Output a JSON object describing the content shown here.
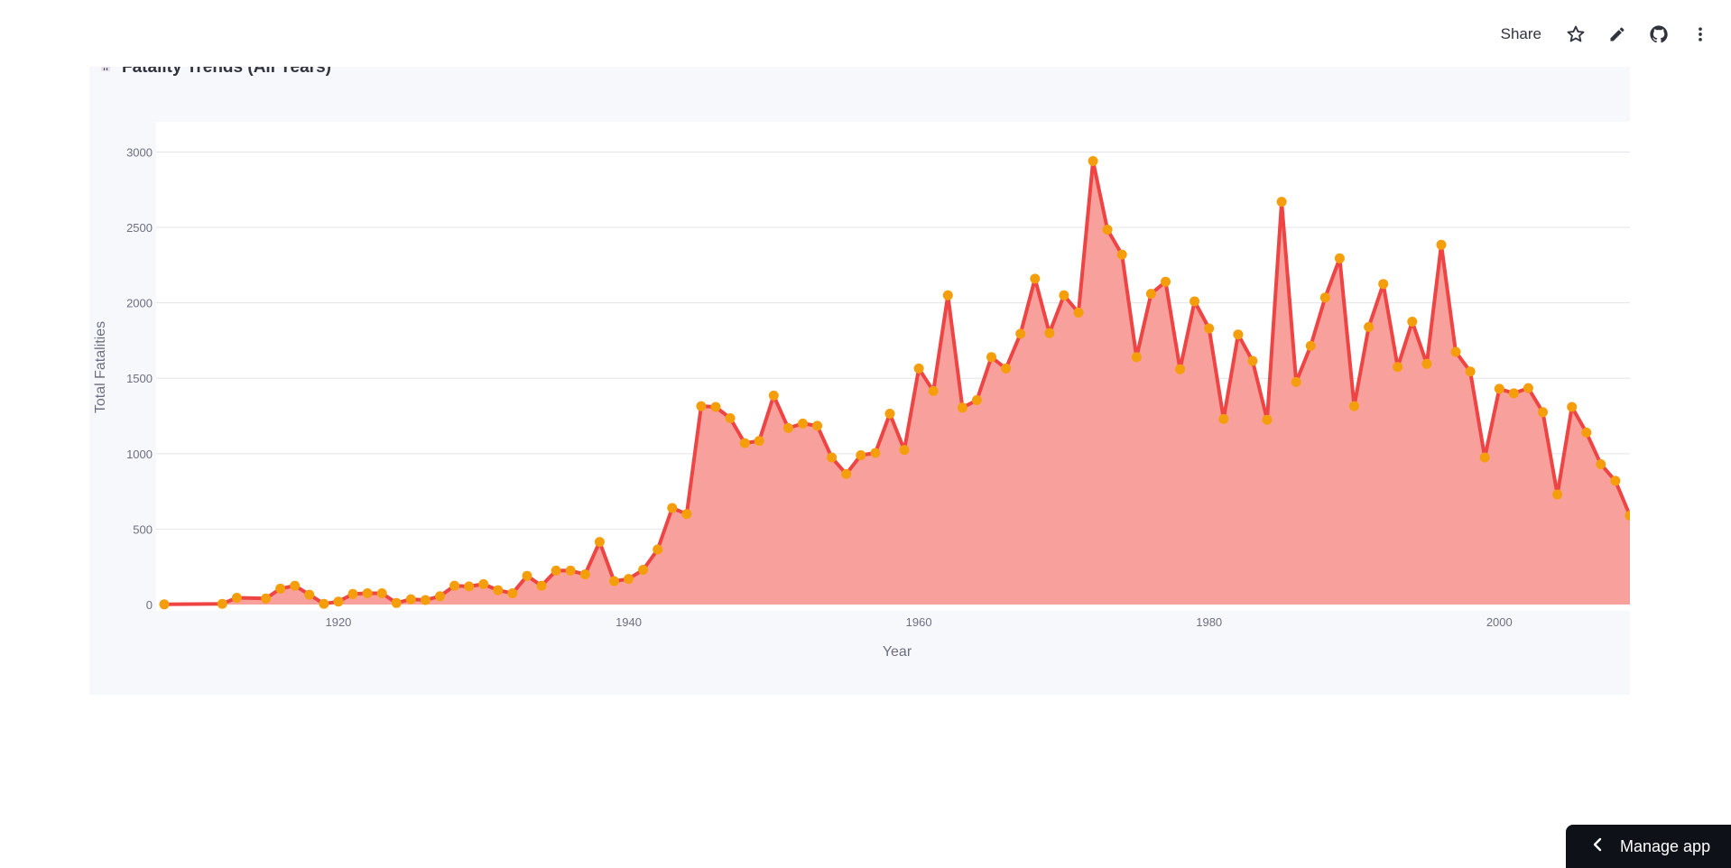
{
  "header": {
    "share_label": "Share",
    "icons": [
      "star-icon",
      "pencil-icon",
      "github-icon",
      "more-vertical-icon"
    ]
  },
  "manage_app": {
    "label": "Manage app"
  },
  "colors": {
    "line": "#ef4444",
    "fill": "#f8a09b",
    "marker": "#f59e0b",
    "card_bg": "#f7f8fc",
    "grid": "#e3e4ea"
  },
  "chart_data": {
    "type": "area",
    "title": "Fatality Trends (All Years)",
    "xlabel": "Year",
    "ylabel": "Total Fatalities",
    "xlim": [
      1908,
      2009
    ],
    "ylim": [
      0,
      3200
    ],
    "x_ticks": [
      1920,
      1940,
      1960,
      1980,
      2000
    ],
    "x_tick_labels": [
      "1920",
      "1940",
      "1960",
      "1980",
      "2000"
    ],
    "y_ticks": [
      0,
      500,
      1000,
      1500,
      2000,
      2500,
      3000
    ],
    "y_tick_labels": [
      "0",
      "500",
      "1000",
      "1500",
      "2000",
      "2500",
      "3000"
    ],
    "grid": true,
    "series": [
      {
        "name": "Total Fatalities",
        "points": [
          [
            1908,
            1
          ],
          [
            1912,
            5
          ],
          [
            1913,
            45
          ],
          [
            1915,
            40
          ],
          [
            1916,
            105
          ],
          [
            1917,
            125
          ],
          [
            1918,
            65
          ],
          [
            1919,
            5
          ],
          [
            1920,
            20
          ],
          [
            1921,
            70
          ],
          [
            1922,
            75
          ],
          [
            1923,
            75
          ],
          [
            1924,
            10
          ],
          [
            1925,
            35
          ],
          [
            1926,
            30
          ],
          [
            1927,
            55
          ],
          [
            1928,
            125
          ],
          [
            1929,
            120
          ],
          [
            1930,
            135
          ],
          [
            1931,
            95
          ],
          [
            1932,
            75
          ],
          [
            1933,
            190
          ],
          [
            1934,
            125
          ],
          [
            1935,
            225
          ],
          [
            1936,
            225
          ],
          [
            1937,
            200
          ],
          [
            1938,
            415
          ],
          [
            1939,
            155
          ],
          [
            1940,
            170
          ],
          [
            1941,
            230
          ],
          [
            1942,
            365
          ],
          [
            1943,
            640
          ],
          [
            1944,
            600
          ],
          [
            1945,
            1315
          ],
          [
            1946,
            1310
          ],
          [
            1947,
            1235
          ],
          [
            1948,
            1070
          ],
          [
            1949,
            1085
          ],
          [
            1950,
            1385
          ],
          [
            1951,
            1170
          ],
          [
            1952,
            1200
          ],
          [
            1953,
            1185
          ],
          [
            1954,
            975
          ],
          [
            1955,
            865
          ],
          [
            1956,
            990
          ],
          [
            1957,
            1005
          ],
          [
            1958,
            1265
          ],
          [
            1959,
            1025
          ],
          [
            1960,
            1565
          ],
          [
            1961,
            1415
          ],
          [
            1962,
            2050
          ],
          [
            1963,
            1305
          ],
          [
            1964,
            1355
          ],
          [
            1965,
            1640
          ],
          [
            1966,
            1565
          ],
          [
            1967,
            1795
          ],
          [
            1968,
            2160
          ],
          [
            1969,
            1800
          ],
          [
            1970,
            2050
          ],
          [
            1971,
            1935
          ],
          [
            1972,
            2940
          ],
          [
            1973,
            2485
          ],
          [
            1974,
            2320
          ],
          [
            1975,
            1640
          ],
          [
            1976,
            2060
          ],
          [
            1977,
            2140
          ],
          [
            1978,
            1560
          ],
          [
            1979,
            2010
          ],
          [
            1980,
            1830
          ],
          [
            1981,
            1230
          ],
          [
            1982,
            1790
          ],
          [
            1983,
            1615
          ],
          [
            1984,
            1225
          ],
          [
            1985,
            2670
          ],
          [
            1986,
            1475
          ],
          [
            1987,
            1715
          ],
          [
            1988,
            2035
          ],
          [
            1989,
            2295
          ],
          [
            1990,
            1315
          ],
          [
            1991,
            1840
          ],
          [
            1992,
            2125
          ],
          [
            1993,
            1575
          ],
          [
            1994,
            1875
          ],
          [
            1995,
            1595
          ],
          [
            1996,
            2385
          ],
          [
            1997,
            1675
          ],
          [
            1998,
            1545
          ],
          [
            1999,
            975
          ],
          [
            2000,
            1430
          ],
          [
            2001,
            1400
          ],
          [
            2002,
            1435
          ],
          [
            2003,
            1275
          ],
          [
            2004,
            730
          ],
          [
            2005,
            1310
          ],
          [
            2006,
            1140
          ],
          [
            2007,
            930
          ],
          [
            2008,
            820
          ],
          [
            2009,
            590
          ]
        ]
      }
    ]
  }
}
